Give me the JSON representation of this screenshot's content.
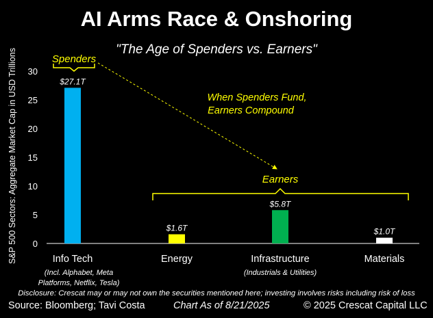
{
  "title": "AI Arms Race & Onshoring",
  "subtitle": "\"The Age of Spenders vs. Earners\"",
  "colors": {
    "background": "#000000",
    "text": "#ffffff",
    "annotation": "#ffff00",
    "info_tech": "#00b0f0",
    "energy": "#ffff00",
    "infrastructure": "#00b050",
    "materials": "#ffffff"
  },
  "chart_data": {
    "type": "bar",
    "title": "AI Arms Race & Onshoring",
    "subtitle": "\"The Age of Spenders vs. Earners\"",
    "xlabel": "",
    "ylabel": "S&P 500 Sectors: Aggregate Market Cap in USD Trillions",
    "ylim": [
      0,
      30
    ],
    "yticks": [
      0,
      5,
      10,
      15,
      20,
      25,
      30
    ],
    "grid": false,
    "categories": [
      "Info Tech",
      "Energy",
      "Infrastructure",
      "Materials"
    ],
    "category_notes": [
      "(Incl. Alphabet, Meta\nPlatforms, Netflix, Tesla)",
      "",
      "(Industrials & Utilities)",
      ""
    ],
    "values": [
      27.1,
      1.6,
      5.8,
      1.0
    ],
    "data_labels": [
      "$27.1T",
      "$1.6T",
      "$5.8T",
      "$1.0T"
    ],
    "bar_colors": [
      "#00b0f0",
      "#ffff00",
      "#00b050",
      "#ffffff"
    ],
    "annotations": {
      "spenders": "Spenders",
      "earners": "Earners",
      "callout_line1": "When Spenders Fund,",
      "callout_line2": "Earners Compound"
    }
  },
  "footer": {
    "disclosure": "Disclosure: Crescat may or may not own the securities mentioned here; investing involves risks including risk of loss",
    "source": "Source: Bloomberg; Tavi Costa",
    "date": "Chart As of 8/21/2025",
    "copyright": "© 2025 Crescat Capital LLC"
  }
}
